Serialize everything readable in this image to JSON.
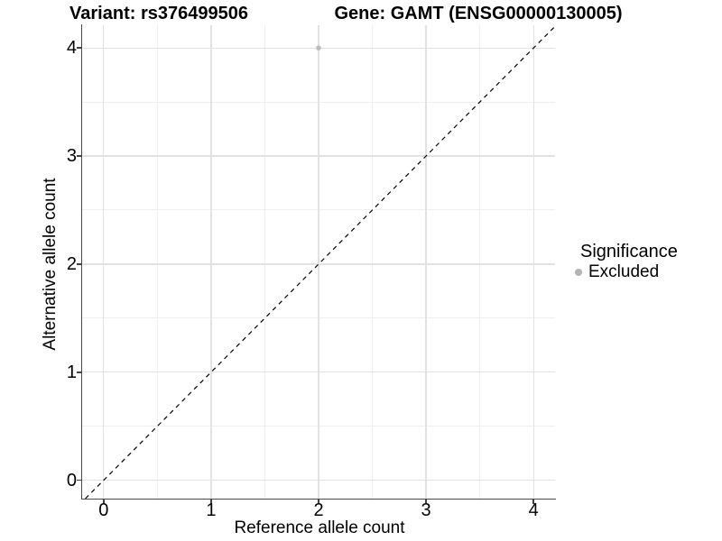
{
  "header": {
    "variant_title": "Variant: rs376499506",
    "gene_title": "Gene: GAMT (ENSG00000130005)"
  },
  "legend": {
    "title": "Significance",
    "items": [
      {
        "label": "Excluded",
        "color": "#b3b3b3"
      }
    ]
  },
  "colors": {
    "point": "#bcbcbc",
    "grid_major": "#e2e2e2",
    "grid_minor": "#efefef",
    "reference_line": "#000000",
    "axis_line": "#494949"
  },
  "chart_data": {
    "type": "scatter",
    "title": "Variant: rs376499506    Gene: GAMT (ENSG00000130005)",
    "xlabel": "Reference allele count",
    "ylabel": "Alternative allele count",
    "xlim": [
      -0.2,
      4.2
    ],
    "ylim": [
      -0.17,
      4.21
    ],
    "x_ticks": [
      0,
      1,
      2,
      3,
      4
    ],
    "y_ticks": [
      0,
      1,
      2,
      3,
      4
    ],
    "minor_x": [
      0.5,
      1.5,
      2.5,
      3.5
    ],
    "minor_y": [
      0.5,
      1.5,
      2.5,
      3.5
    ],
    "grid": true,
    "legend_position": "right",
    "series": [
      {
        "name": "Excluded",
        "color": "#bcbcbc",
        "points": [
          {
            "x": 2,
            "y": 4
          }
        ]
      }
    ],
    "reference_line": {
      "type": "identity",
      "slope": 1,
      "intercept": 0,
      "style": "dashed",
      "color": "#000000"
    }
  }
}
